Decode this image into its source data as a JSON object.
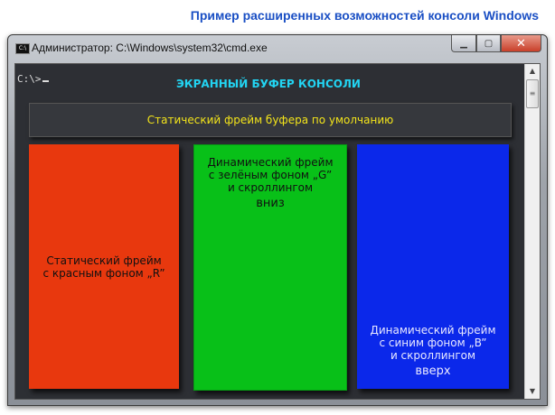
{
  "caption": "Пример расширенных возможностей консоли Windows",
  "window": {
    "title": "Администратор: C:\\Windows\\system32\\cmd.exe",
    "icon": "cmd-icon",
    "controls": {
      "minimize": "minimize-icon",
      "maximize": "maximize-icon",
      "close": "close-icon"
    }
  },
  "console": {
    "prompt": "C:\\>",
    "heading": "ЭКРАННЫЙ БУФЕР КОНСОЛИ",
    "static_frame": "Статический фрейм буфера по умолчанию",
    "frames": [
      {
        "lines": [
          "Статический фрейм",
          "с красным фоном „R”"
        ],
        "extra": "",
        "color": "#e8380e"
      },
      {
        "lines": [
          "Динамический фрейм",
          "с зелёным фоном „G”",
          "и скроллингом"
        ],
        "extra": "вниз",
        "color": "#08c018"
      },
      {
        "lines": [
          "Динамический фрейм",
          "с синим фоном „B”",
          "и скроллингом"
        ],
        "extra": "вверх",
        "color": "#0b28ea"
      }
    ]
  }
}
